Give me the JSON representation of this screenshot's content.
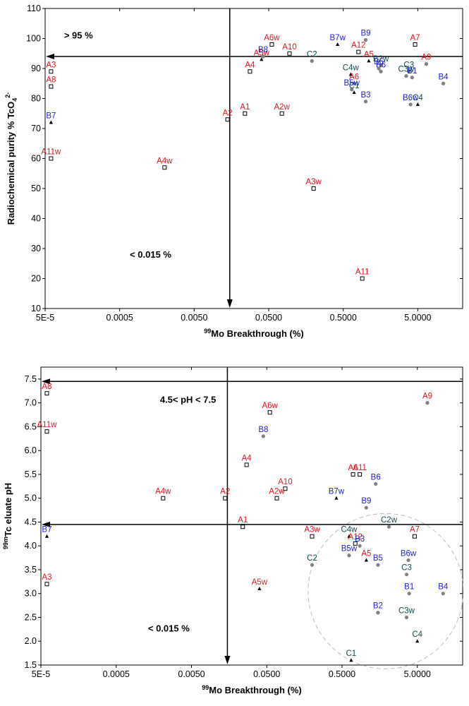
{
  "colors": {
    "red": "#e8101a",
    "blue": "#1a1ae6",
    "teal": "#0f4a4a",
    "axis": "#000000",
    "dashed_circle": "#bbbbbb",
    "gray_marker": "#808080"
  },
  "chart_data": [
    {
      "type": "scatter",
      "xscale": "log",
      "xlabel_sup": "99",
      "xlabel_main": "Mo Breakthrough (%)",
      "ylabel_main": "Radiochemical purity % TcO",
      "ylabel_sub": "4",
      "ylabel_sup": "2-",
      "xlim": [
        5e-05,
        20
      ],
      "ylim": [
        10,
        110
      ],
      "xticks": [
        5e-05,
        0.0005,
        0.005,
        0.05,
        0.5,
        5
      ],
      "xtick_labels": [
        "5E-5",
        "0.0005",
        "0.0050",
        "0.0500",
        "0.5000",
        "5.0000"
      ],
      "yticks": [
        10,
        20,
        30,
        40,
        50,
        60,
        70,
        80,
        90,
        100,
        110
      ],
      "ytick_labels": [
        "10",
        "20",
        "30",
        "40",
        "50",
        "60",
        "70",
        "80",
        "90",
        "100",
        "110"
      ],
      "vline_x": 0.015,
      "hline_y": 94,
      "annotations": [
        {
          "text": "> 95 %",
          "x": 0.00014,
          "y": 100
        },
        {
          "text": "< 0.015 %",
          "x": 0.0013,
          "y": 27
        }
      ],
      "points": [
        {
          "label": "A3",
          "x": 6e-05,
          "y": 89,
          "color": "red",
          "marker": "square"
        },
        {
          "label": "A8",
          "x": 6e-05,
          "y": 84,
          "color": "red",
          "marker": "square"
        },
        {
          "label": "B7",
          "x": 6e-05,
          "y": 72,
          "color": "blue",
          "marker": "triangle"
        },
        {
          "label": "A11w",
          "x": 6e-05,
          "y": 60,
          "color": "red",
          "marker": "square"
        },
        {
          "label": "A4w",
          "x": 0.002,
          "y": 57,
          "color": "red",
          "marker": "square"
        },
        {
          "label": "A2",
          "x": 0.014,
          "y": 73,
          "color": "red",
          "marker": "square"
        },
        {
          "label": "A1",
          "x": 0.024,
          "y": 75,
          "color": "red",
          "marker": "square"
        },
        {
          "label": "A4",
          "x": 0.028,
          "y": 89,
          "color": "red",
          "marker": "square"
        },
        {
          "label": "A5w",
          "x": 0.04,
          "y": 93,
          "color": "red",
          "marker": "triangle"
        },
        {
          "label": "B8",
          "x": 0.042,
          "y": 94,
          "color": "blue",
          "marker": "circle"
        },
        {
          "label": "A6w",
          "x": 0.055,
          "y": 98,
          "color": "red",
          "marker": "square"
        },
        {
          "label": "A2w",
          "x": 0.075,
          "y": 75,
          "color": "red",
          "marker": "square"
        },
        {
          "label": "A10",
          "x": 0.095,
          "y": 95,
          "color": "red",
          "marker": "square"
        },
        {
          "label": "C2",
          "x": 0.19,
          "y": 92.5,
          "color": "teal",
          "marker": "circle"
        },
        {
          "label": "A3w",
          "x": 0.2,
          "y": 50,
          "color": "red",
          "marker": "square"
        },
        {
          "label": "B7w",
          "x": 0.42,
          "y": 98,
          "color": "blue",
          "marker": "triangle"
        },
        {
          "label": "C4w",
          "x": 0.63,
          "y": 88,
          "color": "teal",
          "marker": "triangle"
        },
        {
          "label": "A6",
          "x": 0.7,
          "y": 85,
          "color": "red",
          "marker": "circle"
        },
        {
          "label": "B5w",
          "x": 0.65,
          "y": 83,
          "color": "blue",
          "marker": "circle"
        },
        {
          "label": "C1",
          "x": 0.7,
          "y": 82,
          "color": "teal",
          "marker": "triangle"
        },
        {
          "label": "A12",
          "x": 0.8,
          "y": 95.5,
          "color": "red",
          "marker": "square"
        },
        {
          "label": "A11",
          "x": 0.9,
          "y": 20,
          "color": "red",
          "marker": "square"
        },
        {
          "label": "B3",
          "x": 1.0,
          "y": 79,
          "color": "blue",
          "marker": "circle"
        },
        {
          "label": "B9",
          "x": 1.0,
          "y": 99.5,
          "color": "blue",
          "marker": "circle"
        },
        {
          "label": "A5",
          "x": 1.1,
          "y": 92.5,
          "color": "red",
          "marker": "triangle"
        },
        {
          "label": "B2w",
          "x": 1.6,
          "y": 91,
          "color": "teal",
          "marker": "circle"
        },
        {
          "label": "B6",
          "x": 1.6,
          "y": 89,
          "color": "blue",
          "marker": "circle"
        },
        {
          "label": "B5",
          "x": 1.5,
          "y": 90,
          "color": "blue",
          "marker": "circle"
        },
        {
          "label": "C3",
          "x": 3.8,
          "y": 89,
          "color": "teal",
          "marker": "circle"
        },
        {
          "label": "C3w",
          "x": 3.5,
          "y": 87.5,
          "color": "teal",
          "marker": "circle"
        },
        {
          "label": "B1",
          "x": 4.2,
          "y": 87,
          "color": "blue",
          "marker": "circle"
        },
        {
          "label": "B6w",
          "x": 4.0,
          "y": 78,
          "color": "blue",
          "marker": "circle"
        },
        {
          "label": "C4",
          "x": 5.0,
          "y": 78,
          "color": "teal",
          "marker": "triangle"
        },
        {
          "label": "A7",
          "x": 4.6,
          "y": 98,
          "color": "red",
          "marker": "square"
        },
        {
          "label": "A9",
          "x": 6.5,
          "y": 91.5,
          "color": "red",
          "marker": "circle"
        },
        {
          "label": "B4",
          "x": 11.0,
          "y": 85,
          "color": "blue",
          "marker": "circle"
        }
      ]
    },
    {
      "type": "scatter",
      "xscale": "log",
      "xlabel_sup": "99",
      "xlabel_main": "Mo Breakthrough (%)",
      "ylabel_sup": "99m",
      "ylabel_main": "Tc eluate  pH",
      "xlim": [
        5e-05,
        20
      ],
      "ylim": [
        1.5,
        7.75
      ],
      "xticks": [
        5e-05,
        0.0005,
        0.005,
        0.05,
        0.5,
        5
      ],
      "xtick_labels": [
        "5E-5",
        "0.0005",
        "0.0050",
        "0.0500",
        "0.5000",
        "5.0000"
      ],
      "yticks": [
        1.5,
        2.0,
        2.5,
        3.0,
        3.5,
        4.0,
        4.5,
        5.0,
        5.5,
        6.0,
        6.5,
        7.0,
        7.5
      ],
      "ytick_labels": [
        "1.5",
        "2.0",
        "2.5",
        "3.0",
        "3.5",
        "4.0",
        "4.5",
        "5.0",
        "5.5",
        "6.0",
        "6.5",
        "7.0",
        "7.5"
      ],
      "vline_x": 0.015,
      "hline_y": [
        7.45,
        4.45
      ],
      "dashed_circle": {
        "cx": 1.9,
        "cy": 3.05
      },
      "annotations": [
        {
          "text": "4.5< pH < 7.5",
          "x": 0.0045,
          "y": 7.0
        },
        {
          "text": "< 0.015 %",
          "x": 0.0025,
          "y": 2.2
        }
      ],
      "points": [
        {
          "label": "A8",
          "x": 6e-05,
          "y": 7.2,
          "color": "red",
          "marker": "square"
        },
        {
          "label": "A11w",
          "x": 6e-05,
          "y": 6.4,
          "color": "red",
          "marker": "square"
        },
        {
          "label": "B7",
          "x": 6e-05,
          "y": 4.2,
          "color": "blue",
          "marker": "triangle"
        },
        {
          "label": "A3",
          "x": 6e-05,
          "y": 3.2,
          "color": "red",
          "marker": "square"
        },
        {
          "label": "A4w",
          "x": 0.0021,
          "y": 5.0,
          "color": "red",
          "marker": "square"
        },
        {
          "label": "A2",
          "x": 0.014,
          "y": 5.0,
          "color": "red",
          "marker": "square"
        },
        {
          "label": "A1",
          "x": 0.024,
          "y": 4.4,
          "color": "red",
          "marker": "square"
        },
        {
          "label": "A4",
          "x": 0.027,
          "y": 5.7,
          "color": "red",
          "marker": "square"
        },
        {
          "label": "B8",
          "x": 0.045,
          "y": 6.3,
          "color": "blue",
          "marker": "circle"
        },
        {
          "label": "A5w",
          "x": 0.04,
          "y": 3.1,
          "color": "red",
          "marker": "triangle"
        },
        {
          "label": "A6w",
          "x": 0.055,
          "y": 6.8,
          "color": "red",
          "marker": "square"
        },
        {
          "label": "A2w",
          "x": 0.068,
          "y": 5.0,
          "color": "red",
          "marker": "square"
        },
        {
          "label": "A10",
          "x": 0.088,
          "y": 5.2,
          "color": "red",
          "marker": "square"
        },
        {
          "label": "A3w",
          "x": 0.2,
          "y": 4.2,
          "color": "red",
          "marker": "square"
        },
        {
          "label": "C2",
          "x": 0.2,
          "y": 3.6,
          "color": "teal",
          "marker": "circle"
        },
        {
          "label": "B7w",
          "x": 0.42,
          "y": 5.0,
          "color": "blue",
          "marker": "triangle"
        },
        {
          "label": "C4w",
          "x": 0.62,
          "y": 4.2,
          "color": "teal",
          "marker": "triangle"
        },
        {
          "label": "B5w",
          "x": 0.62,
          "y": 3.8,
          "color": "blue",
          "marker": "circle"
        },
        {
          "label": "A6",
          "x": 0.7,
          "y": 5.5,
          "color": "red",
          "marker": "square"
        },
        {
          "label": "A11",
          "x": 0.86,
          "y": 5.5,
          "color": "red",
          "marker": "square"
        },
        {
          "label": "A12",
          "x": 0.75,
          "y": 4.05,
          "color": "red",
          "marker": "square"
        },
        {
          "label": "B3",
          "x": 0.86,
          "y": 4.0,
          "color": "blue",
          "marker": "circle"
        },
        {
          "label": "C1",
          "x": 0.66,
          "y": 1.6,
          "color": "teal",
          "marker": "triangle"
        },
        {
          "label": "A5",
          "x": 1.05,
          "y": 3.7,
          "color": "red",
          "marker": "triangle"
        },
        {
          "label": "B9",
          "x": 1.05,
          "y": 4.8,
          "color": "blue",
          "marker": "circle"
        },
        {
          "label": "B6",
          "x": 1.4,
          "y": 5.3,
          "color": "blue",
          "marker": "circle"
        },
        {
          "label": "B5",
          "x": 1.5,
          "y": 3.6,
          "color": "blue",
          "marker": "circle"
        },
        {
          "label": "B2",
          "x": 1.5,
          "y": 2.6,
          "color": "blue",
          "marker": "circle"
        },
        {
          "label": "C2w",
          "x": 2.1,
          "y": 4.4,
          "color": "teal",
          "marker": "circle"
        },
        {
          "label": "C3",
          "x": 3.6,
          "y": 3.4,
          "color": "teal",
          "marker": "circle"
        },
        {
          "label": "C3w",
          "x": 3.6,
          "y": 2.5,
          "color": "teal",
          "marker": "circle"
        },
        {
          "label": "B6w",
          "x": 3.8,
          "y": 3.7,
          "color": "blue",
          "marker": "circle"
        },
        {
          "label": "B1",
          "x": 3.9,
          "y": 3.0,
          "color": "blue",
          "marker": "circle"
        },
        {
          "label": "A7",
          "x": 4.6,
          "y": 4.2,
          "color": "red",
          "marker": "square"
        },
        {
          "label": "C4",
          "x": 5.0,
          "y": 2.0,
          "color": "teal",
          "marker": "triangle"
        },
        {
          "label": "A9",
          "x": 6.8,
          "y": 7.0,
          "color": "red",
          "marker": "circle"
        },
        {
          "label": "B4",
          "x": 11.0,
          "y": 3.0,
          "color": "blue",
          "marker": "circle"
        }
      ]
    }
  ]
}
